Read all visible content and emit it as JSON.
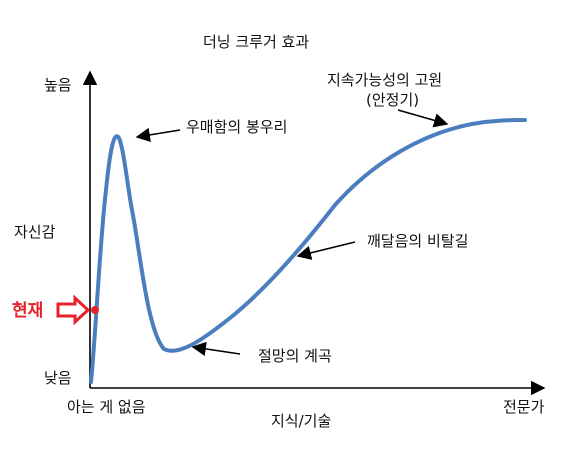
{
  "title": "더닝 크루거 효과",
  "axes": {
    "y_label": "자신감",
    "y_high": "높음",
    "y_low": "낮음",
    "x_label": "지식/기술",
    "x_start": "아는 게 없음",
    "x_end": "전문가"
  },
  "annotations": {
    "peak": "우매함의 봉우리",
    "valley": "절망의 계곡",
    "slope": "깨달음의 비탈길",
    "plateau_line1": "지속가능성의 고원",
    "plateau_line2": "(안정기)"
  },
  "current": {
    "label": "현재",
    "color": "#e8202a"
  },
  "colors": {
    "curve": "#4a7ebf",
    "axis": "#000000",
    "text": "#111111"
  }
}
